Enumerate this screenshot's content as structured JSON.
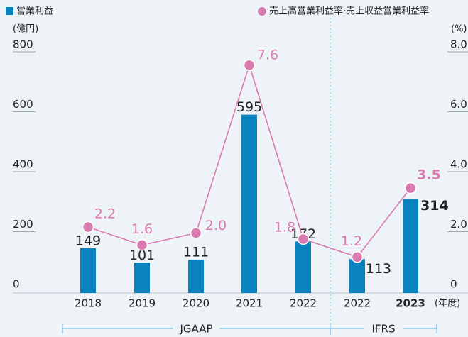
{
  "chart_data": {
    "type": "bar",
    "categories": [
      "2018",
      "2019",
      "2020",
      "2021",
      "2022",
      "2022",
      "2023"
    ],
    "groups": [
      {
        "label": "JGAAP",
        "count": 5
      },
      {
        "label": "IFRS",
        "count": 2
      }
    ],
    "ylabel": "(億円)",
    "y2label": "(%)",
    "xlabel": "(年度)",
    "ylim": [
      0,
      800
    ],
    "yticks": [
      0,
      200,
      400,
      600,
      800
    ],
    "y2lim": [
      0,
      8
    ],
    "y2ticks": [
      0,
      {
        "value": 2,
        "label": "2.0"
      },
      {
        "value": 4,
        "label": "4.0"
      },
      {
        "value": 6,
        "label": "6.0"
      },
      {
        "value": 8,
        "label": "8.0"
      }
    ],
    "series": [
      {
        "name": "営業利益",
        "color": "#0a82bd",
        "values": [
          149,
          101,
          111,
          595,
          172,
          113,
          314
        ]
      },
      {
        "name": "売上高営業利益率·売上収益営業利益率",
        "color": "#d97bb0",
        "axis": "y2",
        "values": [
          2.2,
          1.6,
          2.0,
          7.6,
          1.8,
          1.2,
          3.5
        ],
        "value_labels": [
          "2.2",
          "1.6",
          "2.0",
          "7.6",
          "1.8",
          "1.2",
          "3.5"
        ]
      }
    ]
  }
}
